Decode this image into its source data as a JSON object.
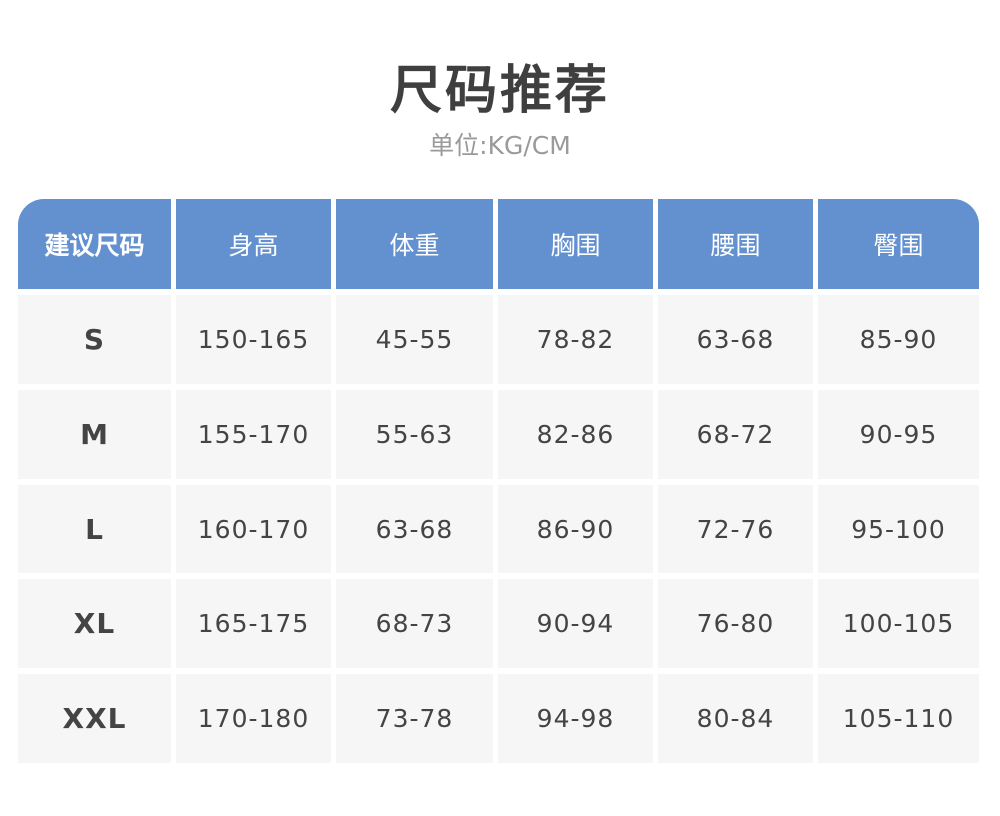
{
  "title": "尺码推荐",
  "subtitle": "单位:KG/CM",
  "table": {
    "headers": [
      "建议尺码",
      "身高",
      "体重",
      "胸围",
      "腰围",
      "臀围"
    ],
    "rows": [
      [
        "S",
        "150-165",
        "45-55",
        "78-82",
        "63-68",
        "85-90"
      ],
      [
        "M",
        "155-170",
        "55-63",
        "82-86",
        "68-72",
        "90-95"
      ],
      [
        "L",
        "160-170",
        "63-68",
        "86-90",
        "72-76",
        "95-100"
      ],
      [
        "XL",
        "165-175",
        "68-73",
        "90-94",
        "76-80",
        "100-105"
      ],
      [
        "XXL",
        "170-180",
        "73-78",
        "94-98",
        "80-84",
        "105-110"
      ]
    ]
  },
  "colors": {
    "header": "#6391d0",
    "cell": "#f6f6f6",
    "text": "#444444"
  }
}
